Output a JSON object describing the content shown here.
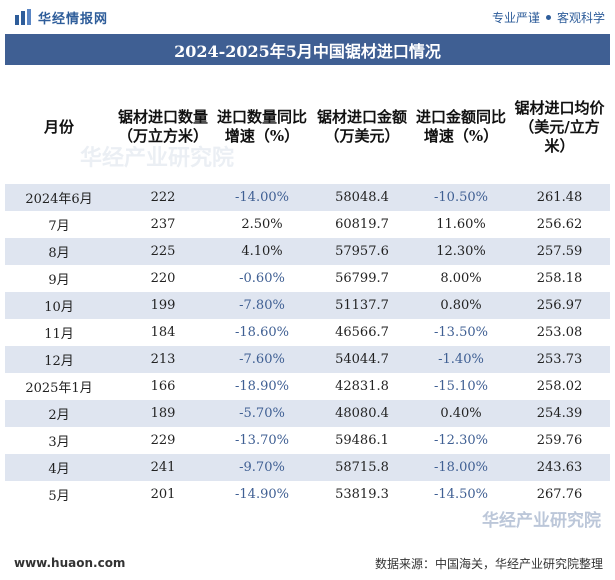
{
  "header": {
    "brand": "华经情报网",
    "tagline_left": "专业严谨",
    "tagline_right": "客观科学",
    "logo_icon": "bar-chart-logo-icon"
  },
  "title": "2024-2025年5月中国锯材进口情况",
  "table": {
    "columns": [
      "月份",
      "锯材进口数量（万立方米）",
      "进口数量同比增速（%）",
      "锯材进口金额（万美元）",
      "进口金额同比增速（%）",
      "锯材进口均价（美元/立方米）"
    ],
    "rows": [
      [
        "2024年6月",
        "222",
        "-14.00%",
        "58048.4",
        "-10.50%",
        "261.48"
      ],
      [
        "7月",
        "237",
        "2.50%",
        "60819.7",
        "11.60%",
        "256.62"
      ],
      [
        "8月",
        "225",
        "4.10%",
        "57957.6",
        "12.30%",
        "257.59"
      ],
      [
        "9月",
        "220",
        "-0.60%",
        "56799.7",
        "8.00%",
        "258.18"
      ],
      [
        "10月",
        "199",
        "-7.80%",
        "51137.7",
        "0.80%",
        "256.97"
      ],
      [
        "11月",
        "184",
        "-18.60%",
        "46566.7",
        "-13.50%",
        "253.08"
      ],
      [
        "12月",
        "213",
        "-7.60%",
        "54044.7",
        "-1.40%",
        "253.73"
      ],
      [
        "2025年1月",
        "166",
        "-18.90%",
        "42831.8",
        "-15.10%",
        "258.02"
      ],
      [
        "2月",
        "189",
        "-5.70%",
        "48080.4",
        "0.40%",
        "254.39"
      ],
      [
        "3月",
        "229",
        "-13.70%",
        "59486.1",
        "-12.30%",
        "259.76"
      ],
      [
        "4月",
        "241",
        "-9.70%",
        "58715.8",
        "-18.00%",
        "243.63"
      ],
      [
        "5月",
        "201",
        "-14.90%",
        "53819.3",
        "-14.50%",
        "267.76"
      ]
    ]
  },
  "footer": {
    "url": "www.huaon.com",
    "source": "数据来源：中国海关，华经产业研究院整理"
  },
  "watermark": "华经产业研究院",
  "colors": {
    "accent": "#3f5f93",
    "row_stripe": "#dfe5f0",
    "negative_text": "#3f5f93"
  }
}
